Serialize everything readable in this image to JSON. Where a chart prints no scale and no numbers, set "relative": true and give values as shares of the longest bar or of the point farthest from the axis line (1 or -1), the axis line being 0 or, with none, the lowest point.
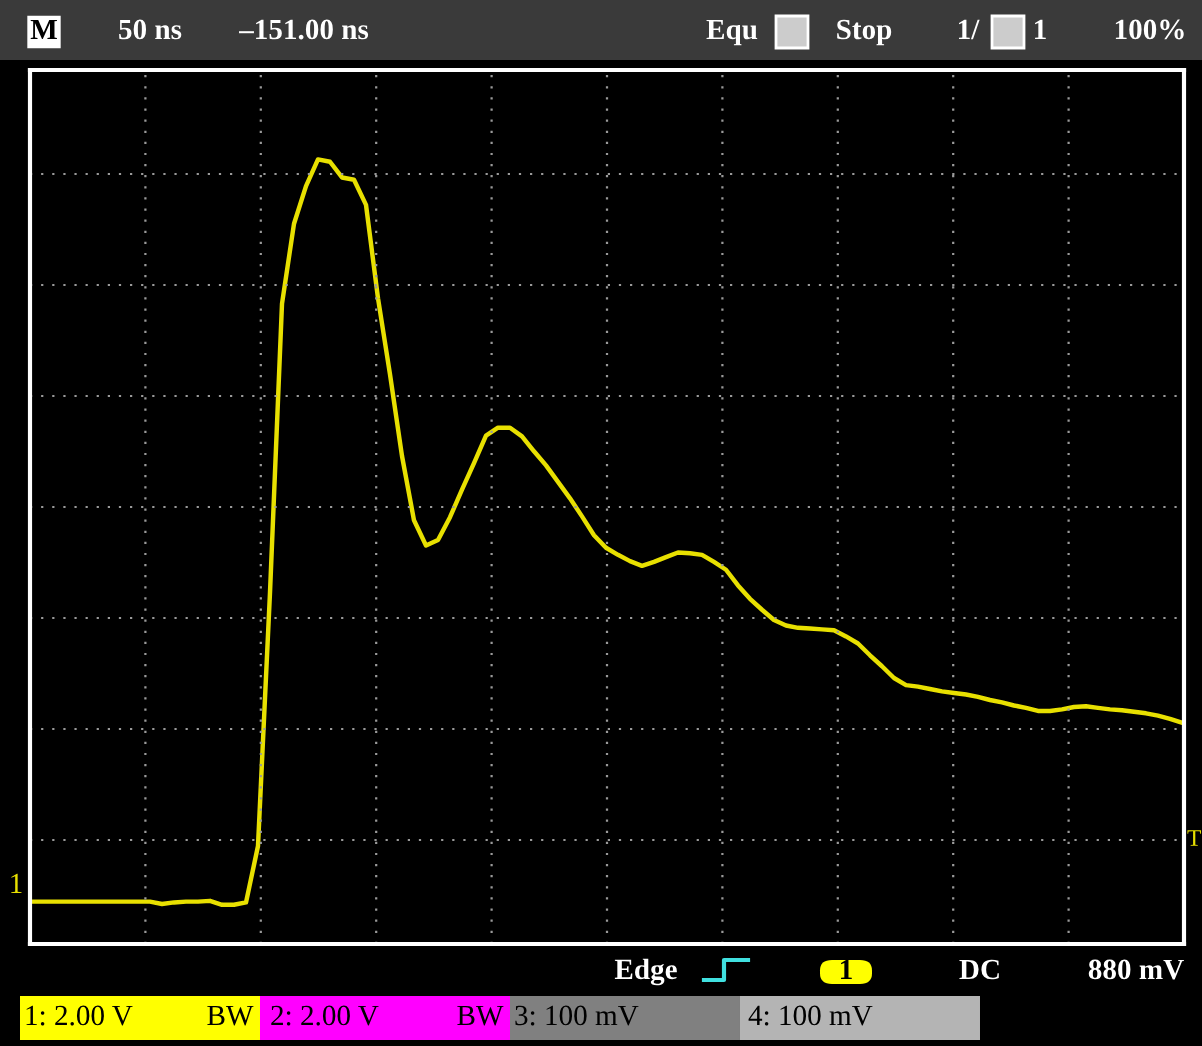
{
  "chart_data": {
    "type": "line",
    "relative": true,
    "grid": true,
    "line_style": "solid",
    "categories": [
      null,
      null,
      null,
      null,
      null,
      null,
      null,
      null,
      null,
      null,
      null,
      null,
      null,
      null,
      null,
      null,
      null,
      null,
      null,
      null,
      null,
      null,
      null,
      null,
      null,
      null,
      null,
      null,
      null,
      null,
      null,
      null,
      null,
      null,
      null,
      null,
      null,
      null,
      null,
      null,
      null,
      null,
      null,
      null,
      null,
      null,
      null,
      null,
      null,
      null,
      null,
      null,
      null,
      null,
      null,
      null,
      null,
      null,
      null,
      null,
      null,
      null,
      null,
      null,
      null,
      null,
      null,
      null,
      null,
      null,
      null,
      null,
      null,
      null,
      null,
      null,
      null,
      null,
      null,
      null,
      null,
      null,
      null,
      null,
      null,
      null,
      null,
      null,
      null,
      null,
      null,
      null,
      null,
      null,
      null,
      null,
      null
    ],
    "series": [
      {
        "color": "#e8e000",
        "values": [
          0.054,
          0.054,
          0.054,
          0.054,
          0.054,
          0.054,
          0.054,
          0.054,
          0.054,
          0.054,
          0.054,
          0.051,
          0.053,
          0.054,
          0.054,
          0.055,
          0.05,
          0.05,
          0.053,
          0.125,
          0.448,
          0.816,
          0.918,
          0.966,
          1,
          0.997,
          0.977,
          0.974,
          0.942,
          0.823,
          0.726,
          0.622,
          0.54,
          0.508,
          0.515,
          0.544,
          0.579,
          0.613,
          0.648,
          0.658,
          0.658,
          0.647,
          0.628,
          0.61,
          0.589,
          0.568,
          0.545,
          0.521,
          0.505,
          0.496,
          0.488,
          0.482,
          0.487,
          0.493,
          0.499,
          0.498,
          0.496,
          0.487,
          0.477,
          0.457,
          0.44,
          0.426,
          0.413,
          0.406,
          0.403,
          0.402,
          0.401,
          0.4,
          0.392,
          0.383,
          0.368,
          0.354,
          0.339,
          0.33,
          0.328,
          0.325,
          0.322,
          0.32,
          0.318,
          0.315,
          0.311,
          0.308,
          0.304,
          0.301,
          0.297,
          0.297,
          0.299,
          0.302,
          0.303,
          0.301,
          0.299,
          0.298,
          0.296,
          0.294,
          0.291,
          0.287,
          0.282
        ]
      }
    ],
    "annotations": [
      "M",
      "50 ns",
      "–151.00 ns",
      "Equ",
      "Stop",
      "1/",
      "1",
      "100%",
      "Edge",
      "1",
      "DC",
      "880 mV",
      "1: 2.00 V",
      "BW",
      "2: 2.00 V",
      "BW",
      "3: 100 mV",
      "4: 100 mV",
      "1",
      "T"
    ]
  }
}
